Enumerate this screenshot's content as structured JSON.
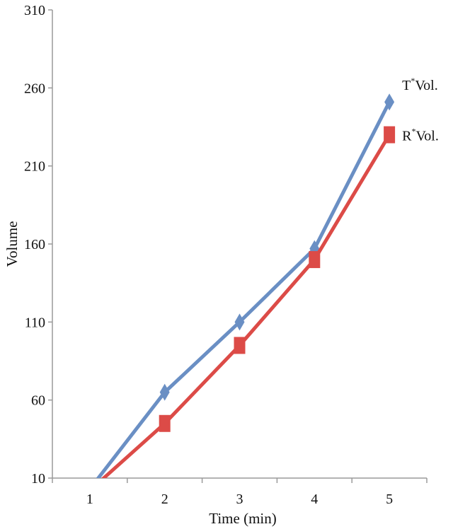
{
  "chart_data": {
    "type": "line",
    "title": "",
    "xlabel": "Time (min)",
    "ylabel": "Volume",
    "categories": [
      "1",
      "2",
      "3",
      "4",
      "5"
    ],
    "ylim": [
      10,
      310
    ],
    "yticks": [
      "310",
      "260",
      "210",
      "160",
      "110",
      "60",
      "10"
    ],
    "grid": false,
    "series": [
      {
        "name": "T*Vol.",
        "label_main": "T",
        "label_sup": "*",
        "label_rest": "Vol.",
        "values": [
          3,
          65,
          110,
          157,
          251
        ],
        "color": "#6a8fc4",
        "marker": "diamond"
      },
      {
        "name": "R*Vol.",
        "label_main": "R",
        "label_sup": "*",
        "label_rest": "Vol.",
        "values": [
          2,
          45,
          95,
          150,
          230
        ],
        "color": "#dc4b47",
        "marker": "square"
      }
    ]
  }
}
